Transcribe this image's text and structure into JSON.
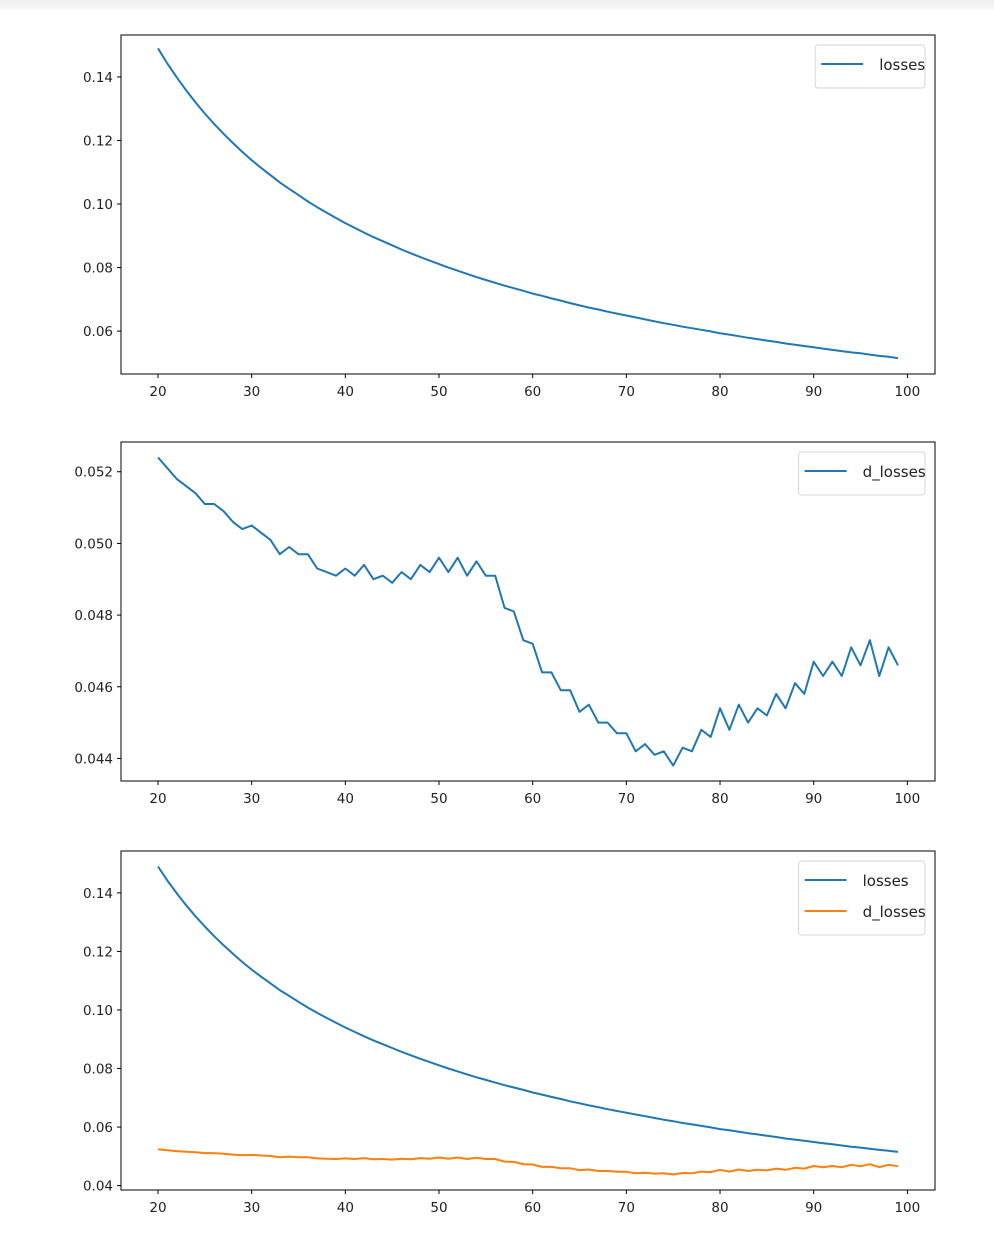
{
  "chart_data": [
    {
      "type": "line",
      "title": "",
      "xlabel": "",
      "ylabel": "",
      "xlim": [
        16.05,
        102.95
      ],
      "ylim": [
        0.0465,
        0.1532
      ],
      "xticks": [
        20,
        30,
        40,
        50,
        60,
        70,
        80,
        90,
        100
      ],
      "xtick_labels": [
        "20",
        "30",
        "40",
        "50",
        "60",
        "70",
        "80",
        "90",
        "100"
      ],
      "yticks": [
        0.06,
        0.08,
        0.1,
        0.12,
        0.14
      ],
      "ytick_labels": [
        "0.06",
        "0.08",
        "0.10",
        "0.12",
        "0.14"
      ],
      "legend": "top-right",
      "series_refs": [
        "losses"
      ]
    },
    {
      "type": "line",
      "title": "",
      "xlabel": "",
      "ylabel": "",
      "xlim": [
        16.05,
        102.95
      ],
      "ylim": [
        0.04337,
        0.05283
      ],
      "xticks": [
        20,
        30,
        40,
        50,
        60,
        70,
        80,
        90,
        100
      ],
      "xtick_labels": [
        "20",
        "30",
        "40",
        "50",
        "60",
        "70",
        "80",
        "90",
        "100"
      ],
      "yticks": [
        0.044,
        0.046,
        0.048,
        0.05,
        0.052
      ],
      "ytick_labels": [
        "0.044",
        "0.046",
        "0.048",
        "0.050",
        "0.052"
      ],
      "legend": "top-right",
      "series_refs": [
        "d_losses"
      ]
    },
    {
      "type": "line",
      "title": "",
      "xlabel": "",
      "ylabel": "",
      "xlim": [
        16.05,
        102.95
      ],
      "ylim": [
        0.0385,
        0.1543
      ],
      "xticks": [
        20,
        30,
        40,
        50,
        60,
        70,
        80,
        90,
        100
      ],
      "xtick_labels": [
        "20",
        "30",
        "40",
        "50",
        "60",
        "70",
        "80",
        "90",
        "100"
      ],
      "yticks": [
        0.04,
        0.06,
        0.08,
        0.1,
        0.12,
        0.14
      ],
      "ytick_labels": [
        "0.04",
        "0.06",
        "0.08",
        "0.10",
        "0.12",
        "0.14"
      ],
      "legend": "top-right",
      "series_refs": [
        "losses",
        "d_losses"
      ]
    }
  ],
  "series": {
    "losses": {
      "name": "losses",
      "color": "#1f77b4",
      "x_start": 20,
      "values": [
        0.149,
        0.1442,
        0.1399,
        0.1358,
        0.132,
        0.1285,
        0.1252,
        0.1221,
        0.1192,
        0.1164,
        0.1138,
        0.1114,
        0.1091,
        0.1068,
        0.1048,
        0.1028,
        0.1008,
        0.099,
        0.0973,
        0.0956,
        0.094,
        0.0925,
        0.091,
        0.0896,
        0.0883,
        0.087,
        0.0857,
        0.0845,
        0.0833,
        0.0822,
        0.0811,
        0.08,
        0.079,
        0.078,
        0.077,
        0.0761,
        0.0752,
        0.0743,
        0.0735,
        0.0727,
        0.0718,
        0.0711,
        0.0703,
        0.0696,
        0.0688,
        0.0681,
        0.0674,
        0.0668,
        0.0661,
        0.0655,
        0.0649,
        0.0643,
        0.0637,
        0.0631,
        0.0625,
        0.062,
        0.0614,
        0.0609,
        0.0604,
        0.0599,
        0.0593,
        0.0589,
        0.0584,
        0.0579,
        0.0575,
        0.057,
        0.0566,
        0.0561,
        0.0557,
        0.0553,
        0.0549,
        0.0545,
        0.0541,
        0.0537,
        0.0533,
        0.053,
        0.0526,
        0.0522,
        0.0519,
        0.0515
      ]
    },
    "d_losses": {
      "name": "d_losses",
      "color": "#1f77b4",
      "color_in_combined": "#ff7f0e",
      "x_start": 20,
      "values": [
        0.0524,
        0.0521,
        0.0518,
        0.0516,
        0.0514,
        0.0511,
        0.0511,
        0.0509,
        0.0506,
        0.0504,
        0.0505,
        0.0503,
        0.0501,
        0.0497,
        0.0499,
        0.0497,
        0.0497,
        0.0493,
        0.0492,
        0.0491,
        0.0493,
        0.0491,
        0.0494,
        0.049,
        0.0491,
        0.0489,
        0.0492,
        0.049,
        0.0494,
        0.0492,
        0.0496,
        0.0492,
        0.0496,
        0.0491,
        0.0495,
        0.0491,
        0.0491,
        0.0482,
        0.0481,
        0.0473,
        0.0472,
        0.0464,
        0.0464,
        0.0459,
        0.0459,
        0.0453,
        0.0455,
        0.045,
        0.045,
        0.0447,
        0.0447,
        0.0442,
        0.0444,
        0.0441,
        0.0442,
        0.0438,
        0.0443,
        0.0442,
        0.0448,
        0.0446,
        0.0454,
        0.0448,
        0.0455,
        0.045,
        0.0454,
        0.0452,
        0.0458,
        0.0454,
        0.0461,
        0.0458,
        0.0467,
        0.0463,
        0.0467,
        0.0463,
        0.0471,
        0.0466,
        0.0473,
        0.0463,
        0.0471,
        0.0466
      ]
    }
  }
}
